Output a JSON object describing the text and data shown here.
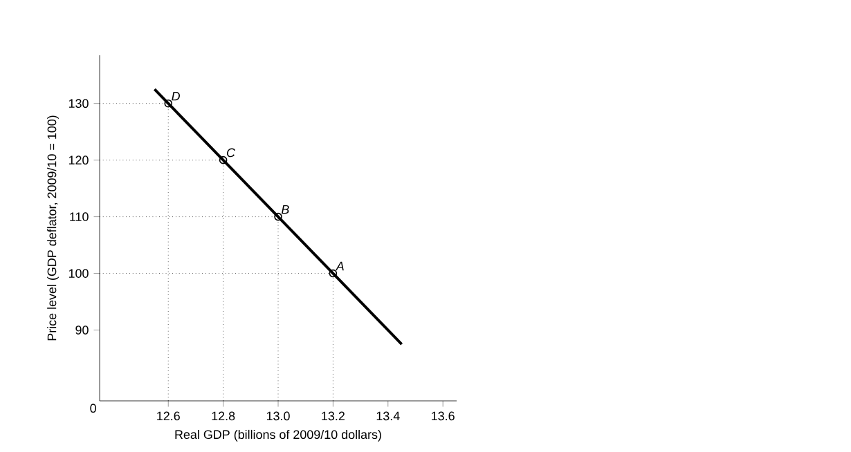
{
  "chart_data": {
    "type": "line",
    "xlabel": "Real GDP (billions of 2009/10 dollars)",
    "ylabel": "Price level (GDP deflator, 2009/10 = 100)",
    "series": [
      {
        "color": "#000000",
        "x": [
          12.55,
          13.45
        ],
        "values": [
          132.5,
          87.5
        ]
      },
      {
        "type": "scatter",
        "color": "#000000",
        "marker": "circle",
        "x": [
          13.2,
          13.0,
          12.8,
          12.6
        ],
        "values": [
          100,
          110,
          120,
          130
        ]
      }
    ],
    "annotations": [
      "0",
      {
        "text": "A",
        "x": 13.2,
        "y": 100
      },
      {
        "text": "B",
        "x": 13.0,
        "y": 110
      },
      {
        "text": "C",
        "x": 12.8,
        "y": 120
      },
      {
        "text": "D",
        "x": 12.6,
        "y": 130
      }
    ],
    "ref_lines": [
      {
        "axis": "y",
        "value": 130,
        "line_style": "dotted"
      },
      {
        "axis": "y",
        "value": 120,
        "line_style": "dotted"
      },
      {
        "axis": "y",
        "value": 110,
        "line_style": "dotted"
      },
      {
        "axis": "y",
        "value": 100,
        "line_style": "dotted"
      },
      {
        "axis": "x",
        "value": 12.6,
        "line_style": "dotted"
      },
      {
        "axis": "x",
        "value": 12.8,
        "line_style": "dotted"
      },
      {
        "axis": "x",
        "value": 13.0,
        "line_style": "dotted"
      },
      {
        "axis": "x",
        "value": 13.2,
        "line_style": "dotted"
      }
    ],
    "xlim": [
      12.35,
      13.65
    ],
    "ylim": [
      77.5,
      138.5
    ],
    "xticks": [
      12.6,
      12.8,
      {
        "value": 13.0,
        "label": "13.0"
      },
      13.2,
      13.4,
      13.6
    ],
    "yticks": [
      90,
      100,
      110,
      120,
      130
    ],
    "grid": false
  }
}
